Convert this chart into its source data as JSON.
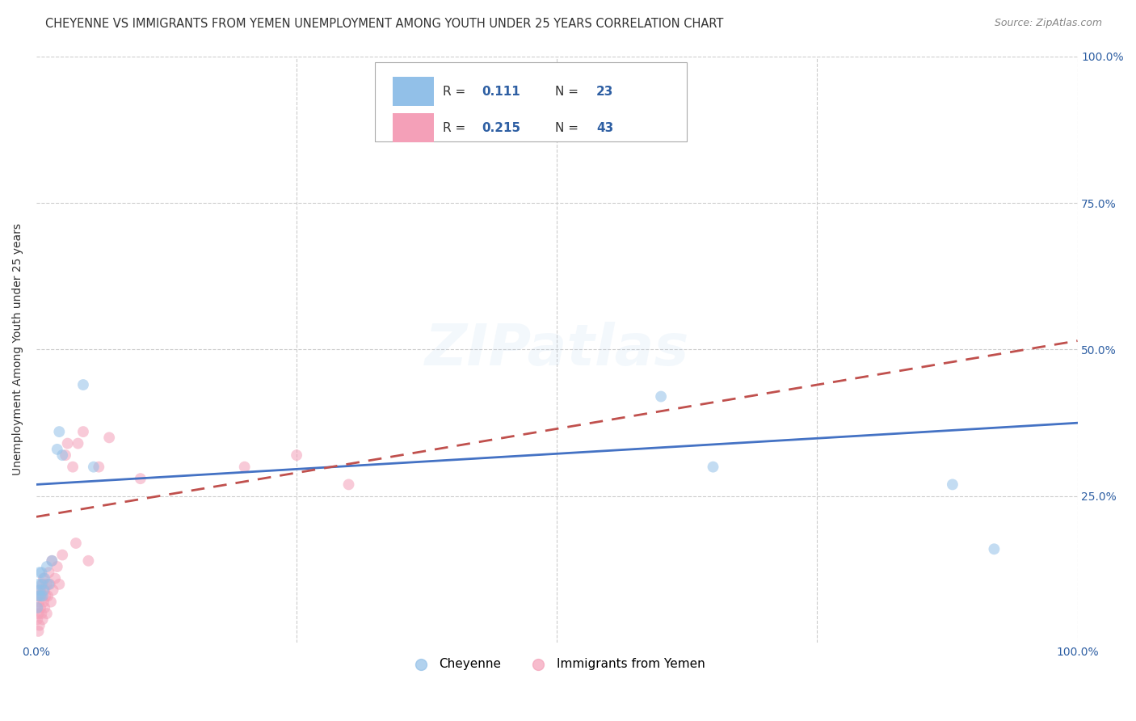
{
  "title": "CHEYENNE VS IMMIGRANTS FROM YEMEN UNEMPLOYMENT AMONG YOUTH UNDER 25 YEARS CORRELATION CHART",
  "source": "Source: ZipAtlas.com",
  "ylabel": "Unemployment Among Youth under 25 years",
  "watermark": "ZIPatlas",
  "xlim": [
    0.0,
    1.0
  ],
  "ylim": [
    0.0,
    1.0
  ],
  "cheyenne_color": "#92C0E8",
  "cheyenne_color_dark": "#4472C4",
  "yemen_color": "#F4A0B8",
  "yemen_color_dark": "#C0504D",
  "cheyenne_R": 0.111,
  "cheyenne_N": 23,
  "yemen_R": 0.215,
  "yemen_N": 43,
  "legend_label_1": "Cheyenne",
  "legend_label_2": "Immigrants from Yemen",
  "background_color": "#ffffff",
  "grid_color": "#cccccc",
  "cheyenne_x": [
    0.001,
    0.002,
    0.002,
    0.003,
    0.003,
    0.004,
    0.005,
    0.005,
    0.006,
    0.007,
    0.008,
    0.01,
    0.012,
    0.015,
    0.02,
    0.022,
    0.025,
    0.045,
    0.055,
    0.6,
    0.65,
    0.88,
    0.92
  ],
  "cheyenne_y": [
    0.06,
    0.08,
    0.1,
    0.09,
    0.12,
    0.08,
    0.1,
    0.12,
    0.08,
    0.09,
    0.11,
    0.13,
    0.1,
    0.14,
    0.33,
    0.36,
    0.32,
    0.44,
    0.3,
    0.42,
    0.3,
    0.27,
    0.16
  ],
  "yemen_x": [
    0.001,
    0.001,
    0.002,
    0.002,
    0.002,
    0.003,
    0.003,
    0.004,
    0.004,
    0.005,
    0.005,
    0.006,
    0.006,
    0.007,
    0.007,
    0.008,
    0.008,
    0.009,
    0.01,
    0.01,
    0.011,
    0.012,
    0.013,
    0.014,
    0.015,
    0.016,
    0.018,
    0.02,
    0.022,
    0.025,
    0.028,
    0.03,
    0.035,
    0.038,
    0.04,
    0.045,
    0.05,
    0.06,
    0.07,
    0.1,
    0.2,
    0.25,
    0.3
  ],
  "yemen_y": [
    0.04,
    0.06,
    0.02,
    0.05,
    0.08,
    0.03,
    0.07,
    0.06,
    0.09,
    0.05,
    0.08,
    0.04,
    0.1,
    0.07,
    0.11,
    0.06,
    0.09,
    0.08,
    0.05,
    0.1,
    0.08,
    0.12,
    0.1,
    0.07,
    0.14,
    0.09,
    0.11,
    0.13,
    0.1,
    0.15,
    0.32,
    0.34,
    0.3,
    0.17,
    0.34,
    0.36,
    0.14,
    0.3,
    0.35,
    0.28,
    0.3,
    0.32,
    0.27
  ],
  "cheyenne_trend_x": [
    0.0,
    1.0
  ],
  "cheyenne_trend_y": [
    0.27,
    0.375
  ],
  "yemen_trend_x": [
    0.0,
    1.0
  ],
  "yemen_trend_y": [
    0.215,
    0.515
  ],
  "title_fontsize": 10.5,
  "source_fontsize": 9,
  "axis_label_fontsize": 10,
  "tick_fontsize": 10,
  "legend_fontsize": 11,
  "marker_size": 100,
  "marker_alpha": 0.55,
  "trend_linewidth": 2.0,
  "watermark_fontsize": 52,
  "watermark_alpha": 0.1,
  "watermark_color": "#92C0E8",
  "accent_color": "#2E5FA3"
}
